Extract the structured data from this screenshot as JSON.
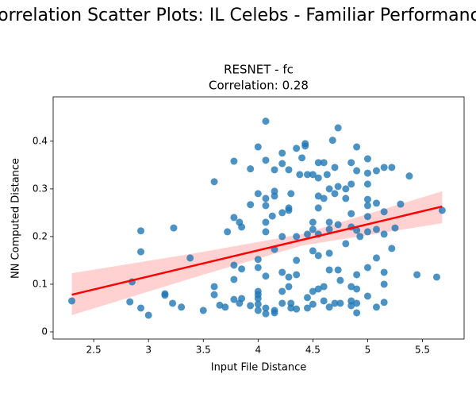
{
  "chart_data": {
    "type": "scatter",
    "figure_title": "Correlation Scatter Plots: IL Celebs - Familiar Performance",
    "title": "RESNET - fc",
    "subtitle": "Correlation: 0.28",
    "x_label": "Input File Distance",
    "y_label": "NN Computed Distance",
    "color": "#1f77b4",
    "xlim": [
      2.13,
      5.88
    ],
    "xticks": [
      2.5,
      3.0,
      3.5,
      4.0,
      4.5,
      5.0,
      5.5
    ],
    "ylim": [
      -0.015,
      0.493
    ],
    "yticks": [
      0.0,
      0.1,
      0.2,
      0.3,
      0.4
    ],
    "x": [
      2.3,
      2.85,
      2.83,
      2.93,
      2.93,
      2.93,
      3.0,
      3.15,
      3.15,
      3.22,
      3.23,
      3.3,
      3.38,
      3.5,
      3.6,
      3.6,
      3.6,
      3.65,
      3.7,
      3.72,
      3.78,
      3.78,
      3.78,
      3.78,
      3.78,
      3.83,
      3.85,
      3.85,
      3.85,
      3.83,
      3.93,
      3.93,
      3.93,
      4.0,
      4.0,
      4.0,
      4.0,
      4.0,
      4.0,
      4.0,
      4.0,
      4.0,
      4.07,
      4.07,
      4.07,
      4.07,
      4.07,
      4.07,
      4.07,
      4.07,
      4.07,
      4.13,
      4.15,
      4.15,
      4.15,
      4.15,
      4.15,
      4.15,
      4.22,
      4.22,
      4.22,
      4.22,
      4.22,
      4.22,
      4.22,
      4.28,
      4.28,
      4.28,
      4.28,
      4.28,
      4.3,
      4.3,
      4.3,
      4.35,
      4.35,
      4.35,
      4.35,
      4.35,
      4.38,
      4.4,
      4.43,
      4.43,
      4.45,
      4.45,
      4.45,
      4.45,
      4.5,
      4.5,
      4.5,
      4.5,
      4.5,
      4.5,
      4.55,
      4.55,
      4.55,
      4.55,
      4.55,
      4.55,
      4.55,
      4.6,
      4.6,
      4.6,
      4.6,
      4.63,
      4.65,
      4.65,
      4.65,
      4.65,
      4.65,
      4.65,
      4.68,
      4.7,
      4.7,
      4.7,
      4.73,
      4.73,
      4.73,
      4.73,
      4.75,
      4.75,
      4.8,
      4.8,
      4.8,
      4.85,
      4.85,
      4.85,
      4.85,
      4.85,
      4.85,
      4.85,
      4.9,
      4.9,
      4.9,
      4.9,
      4.9,
      4.9,
      4.9,
      4.93,
      5.0,
      5.0,
      5.0,
      5.0,
      5.0,
      5.0,
      5.0,
      5.0,
      5.0,
      5.08,
      5.08,
      5.08,
      5.08,
      5.08,
      5.15,
      5.15,
      5.15,
      5.15,
      5.15,
      5.15,
      5.22,
      5.22,
      5.25,
      5.3,
      5.38,
      5.45,
      5.63,
      5.68
    ],
    "values": [
      0.065,
      0.105,
      0.063,
      0.05,
      0.212,
      0.168,
      0.035,
      0.08,
      0.077,
      0.06,
      0.218,
      0.052,
      0.155,
      0.045,
      0.315,
      0.095,
      0.078,
      0.056,
      0.052,
      0.21,
      0.358,
      0.24,
      0.14,
      0.11,
      0.068,
      0.23,
      0.22,
      0.132,
      0.07,
      0.06,
      0.342,
      0.055,
      0.267,
      0.388,
      0.29,
      0.152,
      0.135,
      0.085,
      0.078,
      0.07,
      0.058,
      0.045,
      0.442,
      0.36,
      0.28,
      0.265,
      0.23,
      0.21,
      0.117,
      0.05,
      0.038,
      0.243,
      0.295,
      0.285,
      0.173,
      0.045,
      0.04,
      0.34,
      0.375,
      0.353,
      0.25,
      0.2,
      0.125,
      0.085,
      0.06,
      0.34,
      0.26,
      0.255,
      0.115,
      0.095,
      0.06,
      0.05,
      0.29,
      0.385,
      0.2,
      0.15,
      0.12,
      0.048,
      0.33,
      0.365,
      0.395,
      0.39,
      0.33,
      0.205,
      0.072,
      0.05,
      0.33,
      0.23,
      0.215,
      0.17,
      0.085,
      0.058,
      0.355,
      0.323,
      0.285,
      0.26,
      0.205,
      0.16,
      0.09,
      0.355,
      0.28,
      0.095,
      0.065,
      0.33,
      0.3,
      0.23,
      0.215,
      0.165,
      0.13,
      0.052,
      0.402,
      0.345,
      0.29,
      0.06,
      0.428,
      0.305,
      0.225,
      0.13,
      0.108,
      0.06,
      0.3,
      0.28,
      0.185,
      0.355,
      0.31,
      0.248,
      0.22,
      0.095,
      0.065,
      0.055,
      0.388,
      0.338,
      0.213,
      0.12,
      0.09,
      0.06,
      0.04,
      0.2,
      0.363,
      0.333,
      0.31,
      0.278,
      0.265,
      0.242,
      0.21,
      0.135,
      0.075,
      0.338,
      0.27,
      0.215,
      0.155,
      0.052,
      0.345,
      0.252,
      0.205,
      0.125,
      0.1,
      0.062,
      0.345,
      0.175,
      0.218,
      0.268,
      0.327,
      0.12,
      0.115,
      0.255
    ],
    "regression": {
      "color": "#ff0000",
      "band_color": "#ffb3b3",
      "x": [
        2.3,
        5.68
      ],
      "values": [
        0.078,
        0.263
      ],
      "band_x": [
        2.3,
        3.5,
        4.4,
        5.68
      ],
      "band_lower": [
        0.035,
        0.12,
        0.181,
        0.228
      ],
      "band_upper": [
        0.123,
        0.168,
        0.205,
        0.295
      ]
    }
  }
}
